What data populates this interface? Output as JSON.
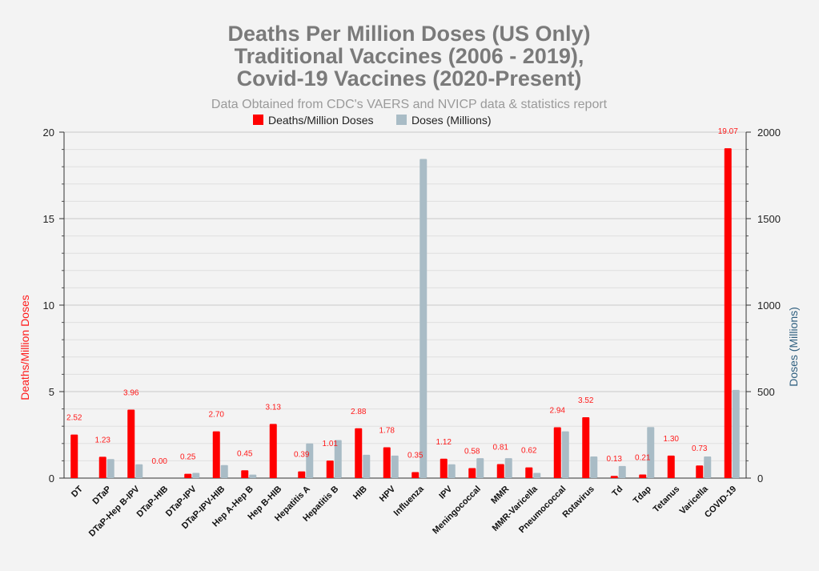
{
  "chart_data": {
    "type": "bar",
    "title_lines": [
      "Deaths Per Million Doses (US Only)",
      "Traditional Vaccines (2006 - 2019),",
      "Covid-19 Vaccines (2020-Present)"
    ],
    "subtitle": "Data Obtained from CDC's VAERS and NVICP data & statistics report",
    "ylabel_left": "Deaths/Million Doses",
    "ylabel_right": "Doses (Millions)",
    "ylim_left": [
      0,
      20
    ],
    "ylim_right": [
      0,
      2000
    ],
    "yticks_left": [
      "0",
      "5",
      "10",
      "15",
      "20"
    ],
    "yticks_right": [
      "0",
      "500",
      "1000",
      "1500",
      "2000"
    ],
    "legend_placement": "top-center",
    "grid": true,
    "categories": [
      "DT",
      "DTaP",
      "DTaP-Hep B-IPV",
      "DTaP-HIB",
      "DTaP-IPV",
      "DTaP-IPV-HIB",
      "Hep A-Hep B",
      "Hep B-HIB",
      "Hepatitis A",
      "Hepatitis B",
      "HIB",
      "HPV",
      "Influenza",
      "IPV",
      "Meningococcal",
      "MMR",
      "MMR-Varicella",
      "Pneumococcal",
      "Rotavirus",
      "Td",
      "Tdap",
      "Tetanus",
      "Varicella",
      "COVID-19"
    ],
    "series": [
      {
        "name": "Deaths/Million Doses",
        "color": "#ff0000",
        "axis": "left",
        "values": [
          2.52,
          1.23,
          3.96,
          0.0,
          0.25,
          2.7,
          0.45,
          3.13,
          0.39,
          1.01,
          2.88,
          1.78,
          0.35,
          1.12,
          0.58,
          0.81,
          0.62,
          2.94,
          3.52,
          0.13,
          0.21,
          1.3,
          0.73,
          19.07
        ],
        "labels": [
          "2.52",
          "1.23",
          "3.96",
          "0.00",
          "0.25",
          "2.70",
          "0.45",
          "3.13",
          "0.39",
          "1.01",
          "2.88",
          "1.78",
          "0.35",
          "1.12",
          "0.58",
          "0.81",
          "0.62",
          "2.94",
          "3.52",
          "0.13",
          "0.21",
          "1.30",
          "0.73",
          "19.07"
        ]
      },
      {
        "name": "Doses (Millions)",
        "color": "#a9bcc6",
        "axis": "right",
        "values": [
          0,
          110,
          80,
          0,
          30,
          75,
          20,
          0,
          200,
          220,
          135,
          130,
          1845,
          80,
          115,
          115,
          30,
          270,
          125,
          70,
          295,
          0,
          125,
          510
        ]
      }
    ]
  }
}
